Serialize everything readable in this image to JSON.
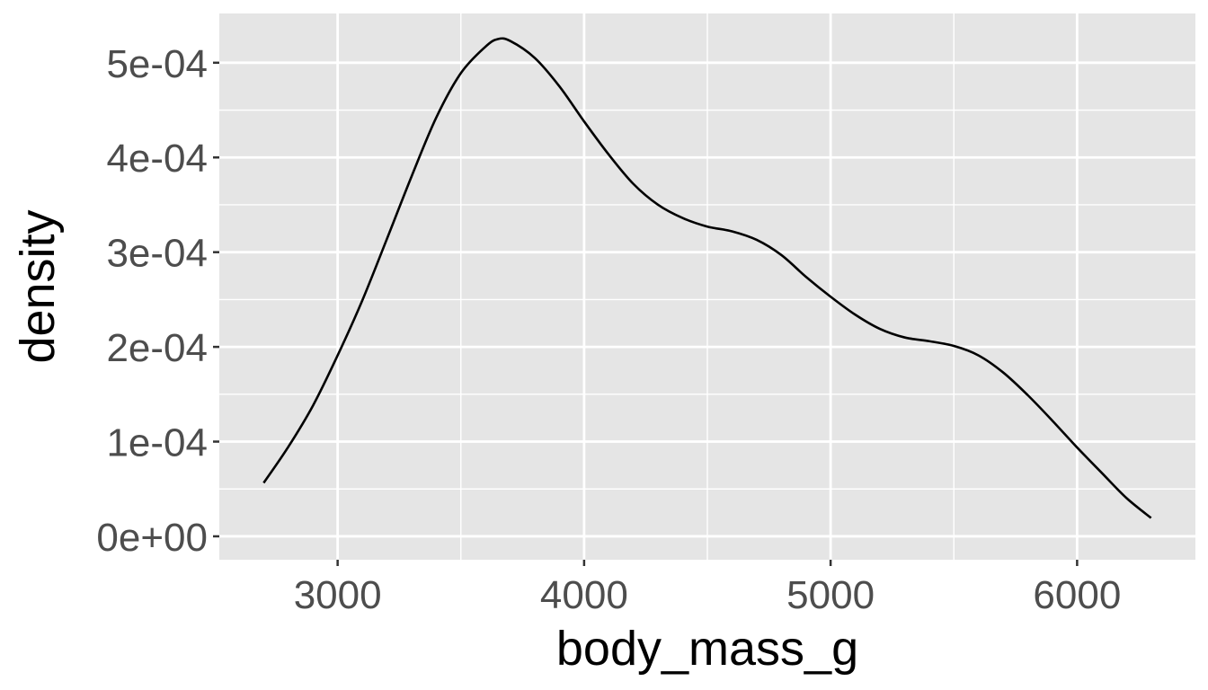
{
  "chart_data": {
    "type": "line",
    "title": "",
    "xlabel": "body_mass_g",
    "ylabel": "density",
    "xlim": [
      2520,
      6480
    ],
    "ylim": [
      -2.47e-05,
      0.000552
    ],
    "x_ticks": [
      3000,
      4000,
      5000,
      6000
    ],
    "x_tick_labels": [
      "3000",
      "4000",
      "5000",
      "6000"
    ],
    "x_minor_ticks": [
      2500,
      3500,
      4500,
      5500,
      6500
    ],
    "y_ticks": [
      0,
      0.0001,
      0.0002,
      0.0003,
      0.0004,
      0.0005
    ],
    "y_tick_labels": [
      "0e+00",
      "1e-04",
      "2e-04",
      "3e-04",
      "4e-04",
      "5e-04"
    ],
    "y_minor_ticks": [
      5e-05,
      0.00015,
      0.00025,
      0.00035,
      0.00045
    ],
    "grid": true,
    "panel_color": "#e5e5e5",
    "grid_color": "#ffffff",
    "line_color": "#000000",
    "series": [
      {
        "x": [
          2700,
          2800,
          2900,
          3000,
          3100,
          3200,
          3300,
          3400,
          3500,
          3600,
          3650,
          3700,
          3800,
          3900,
          4000,
          4100,
          4200,
          4300,
          4400,
          4500,
          4600,
          4700,
          4800,
          4900,
          5000,
          5100,
          5200,
          5300,
          5400,
          5500,
          5600,
          5700,
          5800,
          5900,
          6000,
          6100,
          6200,
          6300
        ],
        "y": [
          5.64e-05,
          9.45e-05,
          0.000138,
          0.000191,
          0.000249,
          0.000314,
          0.00038,
          0.000442,
          0.000489,
          0.000517,
          0.000525,
          0.000523,
          0.000505,
          0.000475,
          0.000438,
          0.000403,
          0.000372,
          0.00035,
          0.000336,
          0.000327,
          0.000322,
          0.000313,
          0.000297,
          0.000274,
          0.000253,
          0.000234,
          0.000219,
          0.00021,
          0.000206,
          0.000201,
          0.000191,
          0.000173,
          0.000149,
          0.000122,
          9.38e-05,
          6.7e-05,
          4.05e-05,
          1.94e-05
        ]
      }
    ]
  }
}
